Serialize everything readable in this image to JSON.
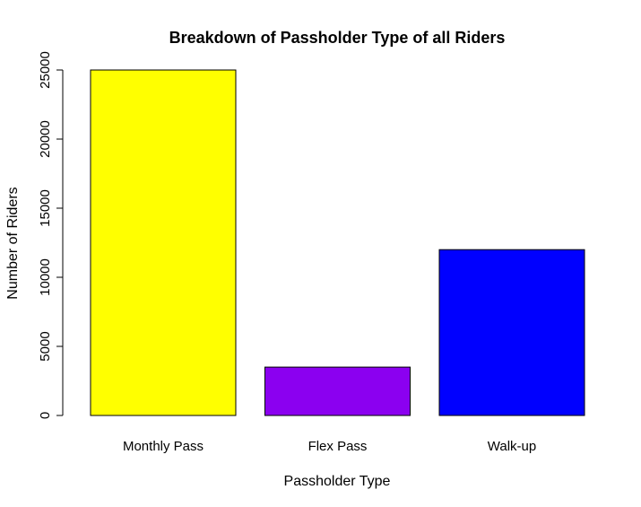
{
  "chart_data": {
    "type": "bar",
    "title": "Breakdown of Passholder Type of all Riders",
    "xlabel": "Passholder Type",
    "ylabel": "Number of Riders",
    "categories": [
      "Monthly Pass",
      "Flex Pass",
      "Walk-up"
    ],
    "values": [
      25000,
      3500,
      12000
    ],
    "colors": [
      "#ffff00",
      "#8b00f0",
      "#0000ff"
    ],
    "ylim": [
      0,
      25000
    ],
    "yticks": [
      0,
      5000,
      10000,
      15000,
      20000,
      25000
    ],
    "ytick_labels": [
      "0",
      "5000",
      "10000",
      "15000",
      "20000",
      "25000"
    ],
    "grid": false,
    "legend": "none"
  }
}
